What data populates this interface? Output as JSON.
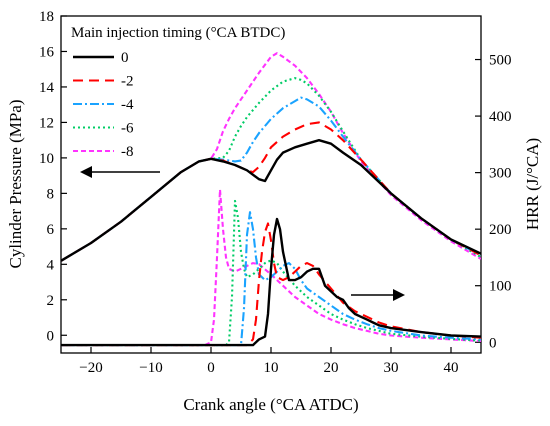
{
  "chart_data": {
    "type": "line",
    "xlabel": "Crank angle (°CA ATDC)",
    "ylabel_left": "Cylinder Pressure (MPa)",
    "ylabel_right": "HRR (J/°CA)",
    "xlim": [
      -25,
      45
    ],
    "ylim_left": [
      -1,
      18
    ],
    "ylim_right": [
      -19,
      577
    ],
    "xticks": [
      "-20",
      "-10",
      "0",
      "10",
      "20",
      "30",
      "40"
    ],
    "yticks_left": [
      "0",
      "2",
      "4",
      "6",
      "8",
      "10",
      "12",
      "14",
      "16",
      "18"
    ],
    "yticks_right": [
      "0",
      "100",
      "200",
      "300",
      "400",
      "500"
    ],
    "legend": {
      "title": "Main injection timing (°CA BTDC)",
      "placement": "top-left",
      "entries": [
        "0",
        "-2",
        "-4",
        "-6",
        "-8"
      ]
    },
    "series_colors": [
      "#000000",
      "#ff0000",
      "#1aa3ff",
      "#00cc66",
      "#ff33ff"
    ],
    "series_dash": [
      "none",
      "10,6",
      "9,3,2,3",
      "2,3",
      "5,3"
    ],
    "series": [
      {
        "name": "0",
        "pressure": {
          "x": [
            -25,
            -20,
            -15,
            -10,
            -5,
            -2,
            0,
            2,
            4,
            6,
            8,
            9,
            10,
            11,
            12,
            14,
            16,
            18,
            20,
            22,
            25,
            30,
            35,
            40,
            45
          ],
          "y": [
            4.2,
            5.2,
            6.4,
            7.8,
            9.2,
            9.8,
            9.95,
            9.8,
            9.6,
            9.3,
            8.8,
            8.7,
            9.3,
            9.9,
            10.3,
            10.6,
            10.8,
            11.0,
            10.8,
            10.3,
            9.6,
            8.0,
            6.6,
            5.4,
            4.6
          ]
        },
        "hrr": {
          "x": [
            -25,
            0,
            5,
            7,
            8,
            9,
            9.5,
            10,
            10.5,
            11,
            11.5,
            12,
            13,
            14,
            15,
            16,
            17,
            18,
            19,
            20,
            21,
            22,
            23,
            24,
            25,
            26,
            27,
            28,
            30,
            35,
            40,
            45
          ],
          "y": [
            -5,
            -5,
            -5,
            -5,
            5,
            10,
            50,
            130,
            190,
            218,
            200,
            160,
            110,
            110,
            115,
            125,
            130,
            130,
            100,
            90,
            80,
            75,
            60,
            50,
            45,
            40,
            35,
            30,
            25,
            18,
            12,
            10
          ]
        }
      },
      {
        "name": "-2",
        "pressure": {
          "x": [
            -25,
            -20,
            -15,
            -10,
            -5,
            -2,
            0,
            2,
            4,
            6,
            7,
            8,
            9,
            10,
            12,
            14,
            16,
            18,
            20,
            22,
            25,
            30,
            35,
            40,
            45
          ],
          "y": [
            4.2,
            5.2,
            6.4,
            7.8,
            9.2,
            9.8,
            9.95,
            9.85,
            9.6,
            9.3,
            9.2,
            9.5,
            10.0,
            10.6,
            11.2,
            11.6,
            11.9,
            12.0,
            11.6,
            11.0,
            9.9,
            8.0,
            6.6,
            5.4,
            4.5
          ]
        },
        "hrr": {
          "x": [
            -25,
            0,
            5,
            6,
            7,
            7.5,
            8,
            8.5,
            9,
            9.5,
            10,
            10.5,
            11,
            12,
            13,
            14,
            15,
            16,
            17,
            18,
            20,
            22,
            24,
            26,
            28,
            30,
            35,
            40,
            45
          ],
          "y": [
            -5,
            -5,
            -5,
            -5,
            5,
            40,
            110,
            160,
            195,
            210,
            180,
            140,
            115,
            110,
            115,
            125,
            135,
            140,
            135,
            120,
            95,
            70,
            55,
            45,
            35,
            28,
            18,
            12,
            8
          ]
        }
      },
      {
        "name": "-4",
        "pressure": {
          "x": [
            -25,
            -20,
            -15,
            -10,
            -5,
            -2,
            0,
            2,
            4,
            5,
            6,
            7,
            8,
            10,
            12,
            14,
            15,
            16,
            18,
            20,
            22,
            25,
            30,
            35,
            40,
            45
          ],
          "y": [
            4.2,
            5.2,
            6.4,
            7.8,
            9.2,
            9.8,
            9.95,
            9.9,
            9.8,
            9.85,
            10.3,
            10.9,
            11.4,
            12.2,
            12.8,
            13.2,
            13.4,
            13.3,
            12.9,
            12.1,
            11.2,
            9.9,
            8.0,
            6.6,
            5.4,
            4.5
          ]
        },
        "hrr": {
          "x": [
            -25,
            0,
            4,
            5,
            5.5,
            6,
            6.5,
            7,
            7.5,
            8,
            9,
            10,
            11,
            12,
            13,
            14,
            15,
            16,
            18,
            20,
            22,
            24,
            26,
            28,
            30,
            35,
            40,
            45
          ],
          "y": [
            -5,
            -5,
            -5,
            -5,
            60,
            190,
            230,
            200,
            150,
            120,
            110,
            115,
            125,
            135,
            140,
            130,
            110,
            95,
            80,
            65,
            50,
            40,
            32,
            25,
            20,
            12,
            8,
            5
          ]
        }
      },
      {
        "name": "-6",
        "pressure": {
          "x": [
            -25,
            -20,
            -15,
            -10,
            -5,
            -2,
            0,
            2,
            3,
            4,
            5,
            6,
            8,
            10,
            12,
            14,
            15,
            16,
            18,
            20,
            22,
            25,
            30,
            35,
            40,
            45
          ],
          "y": [
            4.2,
            5.2,
            6.4,
            7.8,
            9.2,
            9.8,
            9.95,
            10.0,
            10.4,
            11.2,
            11.8,
            12.3,
            13.1,
            13.8,
            14.3,
            14.5,
            14.4,
            14.2,
            13.5,
            12.6,
            11.5,
            9.9,
            8.0,
            6.6,
            5.4,
            4.4
          ]
        },
        "hrr": {
          "x": [
            -25,
            0,
            2.5,
            3,
            3.5,
            4,
            4.5,
            5,
            5.5,
            6,
            7,
            8,
            9,
            10,
            11,
            12,
            14,
            16,
            18,
            20,
            22,
            24,
            26,
            28,
            30,
            35,
            40,
            45
          ],
          "y": [
            -5,
            -5,
            -5,
            0,
            80,
            250,
            220,
            160,
            130,
            115,
            120,
            130,
            140,
            145,
            140,
            125,
            100,
            80,
            65,
            50,
            40,
            32,
            25,
            20,
            15,
            10,
            6,
            3
          ]
        }
      },
      {
        "name": "-8",
        "pressure": {
          "x": [
            -25,
            -20,
            -15,
            -10,
            -5,
            -2,
            0,
            1,
            2,
            3,
            4,
            6,
            8,
            10,
            11,
            12,
            14,
            16,
            18,
            20,
            22,
            25,
            30,
            35,
            40,
            45
          ],
          "y": [
            4.2,
            5.2,
            6.4,
            7.8,
            9.2,
            9.8,
            9.95,
            10.5,
            11.5,
            12.2,
            12.8,
            13.8,
            14.8,
            15.7,
            15.9,
            15.7,
            15.2,
            14.5,
            13.6,
            12.6,
            11.4,
            9.8,
            7.9,
            6.5,
            5.3,
            4.3
          ]
        },
        "hrr": {
          "x": [
            -25,
            -1,
            0,
            0.5,
            1,
            1.5,
            2,
            2.5,
            3,
            4,
            5,
            6,
            7,
            8,
            10,
            12,
            14,
            16,
            18,
            20,
            22,
            24,
            26,
            28,
            30,
            35,
            40,
            45
          ],
          "y": [
            -5,
            -5,
            0,
            40,
            150,
            270,
            200,
            150,
            130,
            125,
            130,
            135,
            140,
            138,
            120,
            100,
            80,
            65,
            50,
            40,
            32,
            25,
            20,
            15,
            12,
            8,
            5,
            2
          ]
        }
      }
    ]
  }
}
